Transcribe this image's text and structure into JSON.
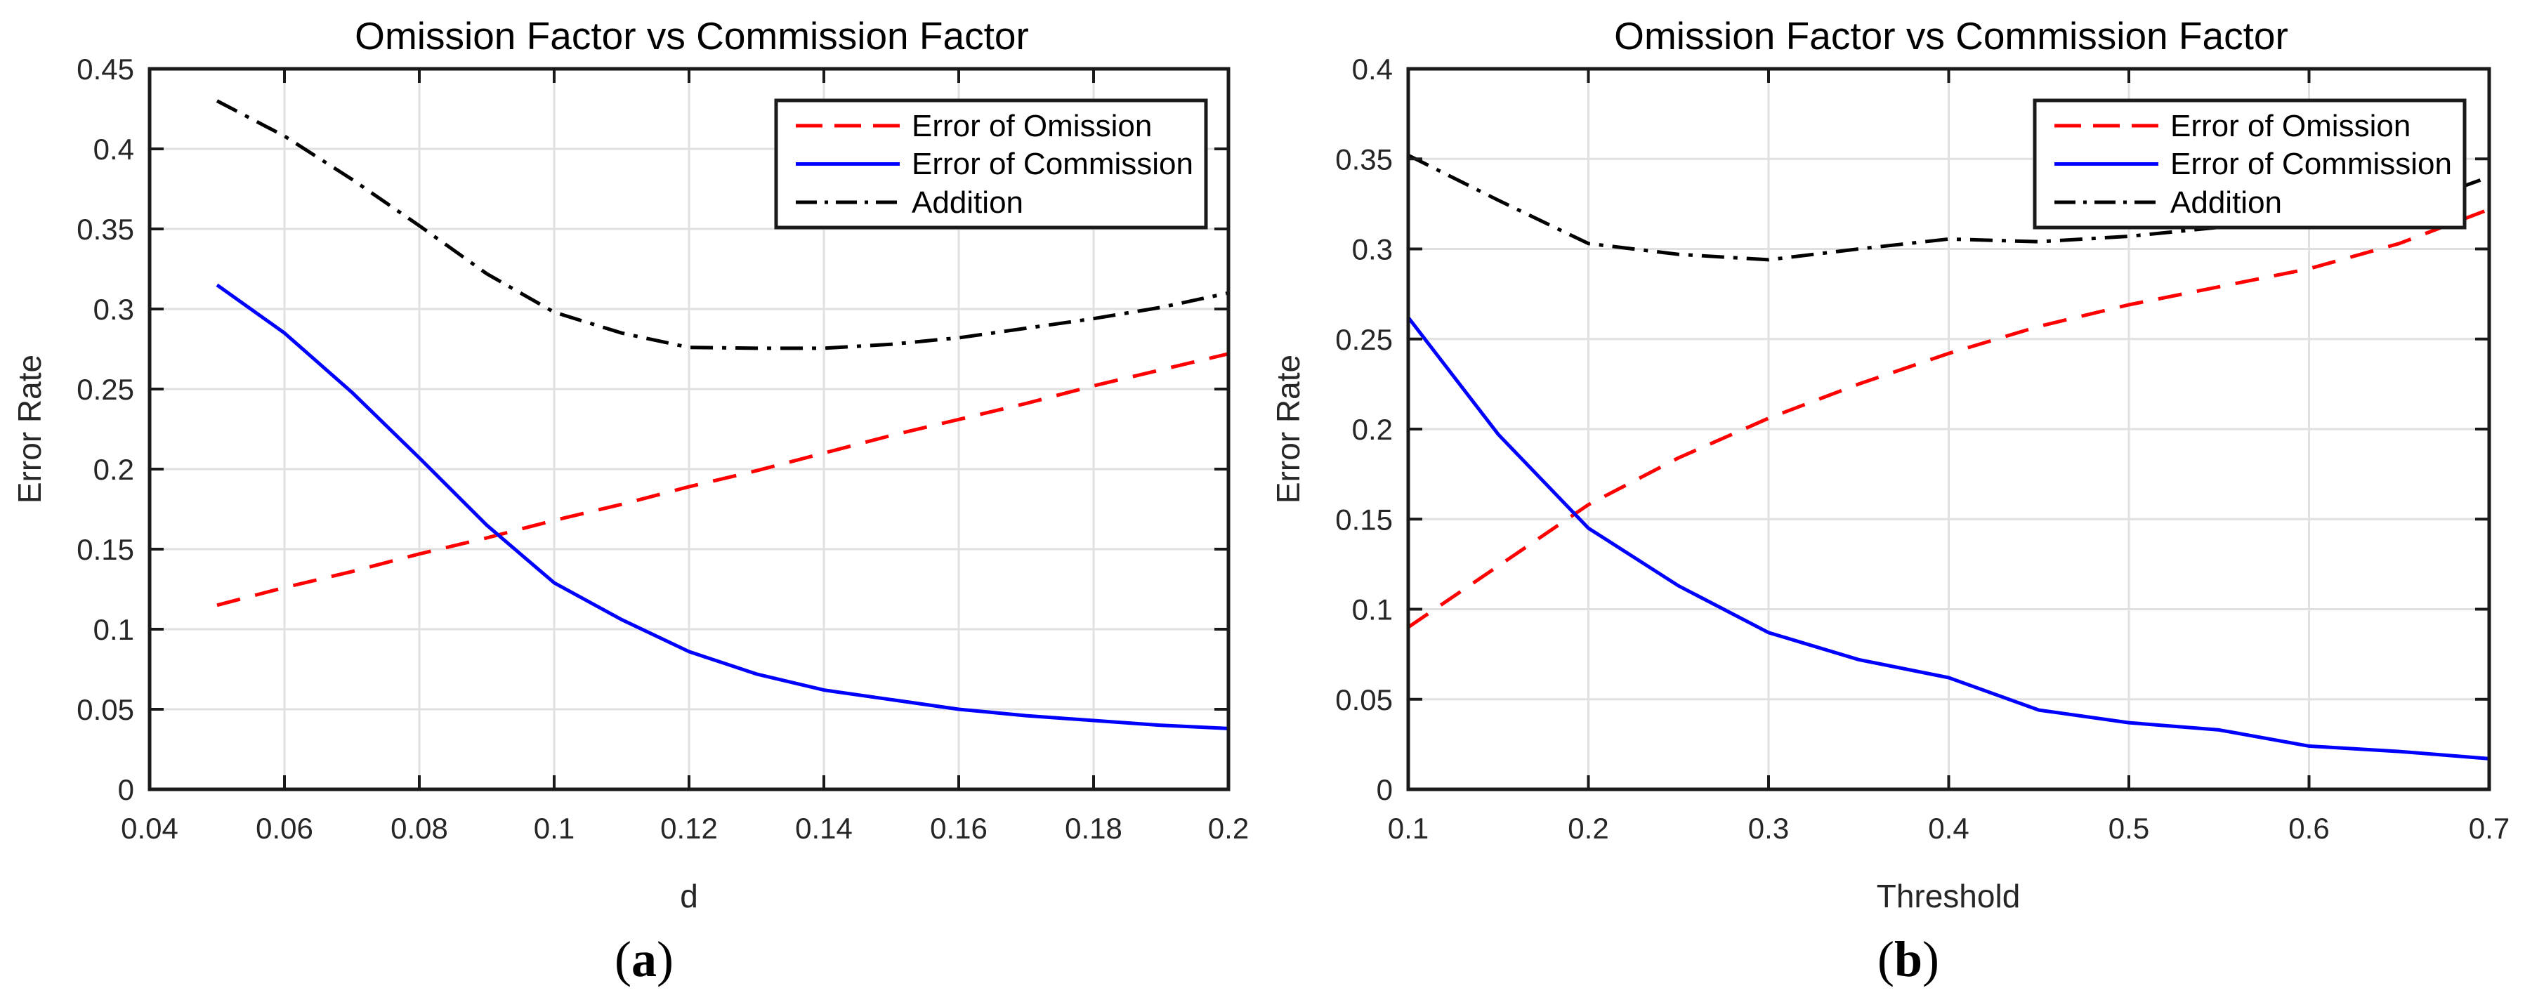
{
  "figure": {
    "captions": [
      {
        "open": "(",
        "letter": "a",
        "close": ")"
      },
      {
        "open": "(",
        "letter": "b",
        "close": ")"
      }
    ]
  },
  "chart_data": [
    {
      "type": "line",
      "panel": "a",
      "title": "Omission Factor vs Commission Factor",
      "xlabel": "d",
      "ylabel": "Error Rate",
      "xlim": [
        0.04,
        0.2
      ],
      "ylim": [
        0,
        0.45
      ],
      "grid": true,
      "legend_position": "top-right",
      "xticks": [
        0.04,
        0.06,
        0.08,
        0.1,
        0.12,
        0.14,
        0.16,
        0.18,
        0.2
      ],
      "xtick_labels": [
        "0.04",
        "0.06",
        "0.08",
        "0.1",
        "0.12",
        "0.14",
        "0.16",
        "0.18",
        "0.2"
      ],
      "yticks": [
        0,
        0.05,
        0.1,
        0.15,
        0.2,
        0.25,
        0.3,
        0.35,
        0.4,
        0.45
      ],
      "ytick_labels": [
        "0",
        "0.05",
        "0.1",
        "0.15",
        "0.2",
        "0.25",
        "0.3",
        "0.35",
        "0.4",
        "0.45"
      ],
      "x": [
        0.05,
        0.06,
        0.07,
        0.08,
        0.09,
        0.1,
        0.11,
        0.12,
        0.13,
        0.14,
        0.15,
        0.16,
        0.17,
        0.18,
        0.19,
        0.2
      ],
      "series": [
        {
          "name": "Error of Omission",
          "color": "#ff0000",
          "style": "dashed",
          "values": [
            0.115,
            0.126,
            0.136,
            0.147,
            0.157,
            0.168,
            0.178,
            0.189,
            0.199,
            0.21,
            0.221,
            0.231,
            0.241,
            0.252,
            0.262,
            0.272
          ]
        },
        {
          "name": "Error of Commission",
          "color": "#0000ff",
          "style": "solid",
          "values": [
            0.315,
            0.285,
            0.248,
            0.207,
            0.165,
            0.129,
            0.106,
            0.086,
            0.072,
            0.062,
            0.056,
            0.05,
            0.046,
            0.043,
            0.04,
            0.038
          ]
        },
        {
          "name": "Addition",
          "color": "#000000",
          "style": "dash-dot",
          "values": [
            0.43,
            0.408,
            0.381,
            0.352,
            0.322,
            0.298,
            0.285,
            0.276,
            0.2755,
            0.2755,
            0.278,
            0.282,
            0.288,
            0.294,
            0.301,
            0.31
          ]
        }
      ]
    },
    {
      "type": "line",
      "panel": "b",
      "title": "Omission Factor vs Commission Factor",
      "xlabel": "Threshold",
      "ylabel": "Error Rate",
      "xlim": [
        0.1,
        0.7
      ],
      "ylim": [
        0,
        0.4
      ],
      "grid": true,
      "legend_position": "top-right",
      "xticks": [
        0.1,
        0.2,
        0.3,
        0.4,
        0.5,
        0.6,
        0.7
      ],
      "xtick_labels": [
        "0.1",
        "0.2",
        "0.3",
        "0.4",
        "0.5",
        "0.6",
        "0.7"
      ],
      "yticks": [
        0,
        0.05,
        0.1,
        0.15,
        0.2,
        0.25,
        0.3,
        0.35,
        0.4
      ],
      "ytick_labels": [
        "0",
        "0.05",
        "0.1",
        "0.15",
        "0.2",
        "0.25",
        "0.3",
        "0.35",
        "0.4"
      ],
      "x": [
        0.1,
        0.15,
        0.2,
        0.25,
        0.3,
        0.35,
        0.4,
        0.45,
        0.5,
        0.55,
        0.6,
        0.65,
        0.7
      ],
      "series": [
        {
          "name": "Error of Omission",
          "color": "#ff0000",
          "style": "dashed",
          "values": [
            0.09,
            0.124,
            0.158,
            0.184,
            0.206,
            0.225,
            0.242,
            0.257,
            0.269,
            0.279,
            0.289,
            0.303,
            0.322
          ]
        },
        {
          "name": "Error of Commission",
          "color": "#0000ff",
          "style": "solid",
          "values": [
            0.262,
            0.197,
            0.145,
            0.113,
            0.087,
            0.072,
            0.062,
            0.044,
            0.037,
            0.033,
            0.024,
            0.021,
            0.017
          ]
        },
        {
          "name": "Addition",
          "color": "#000000",
          "style": "dash-dot",
          "values": [
            0.352,
            0.327,
            0.303,
            0.297,
            0.294,
            0.3,
            0.3055,
            0.304,
            0.307,
            0.312,
            0.316,
            0.322,
            0.34
          ]
        }
      ]
    }
  ]
}
